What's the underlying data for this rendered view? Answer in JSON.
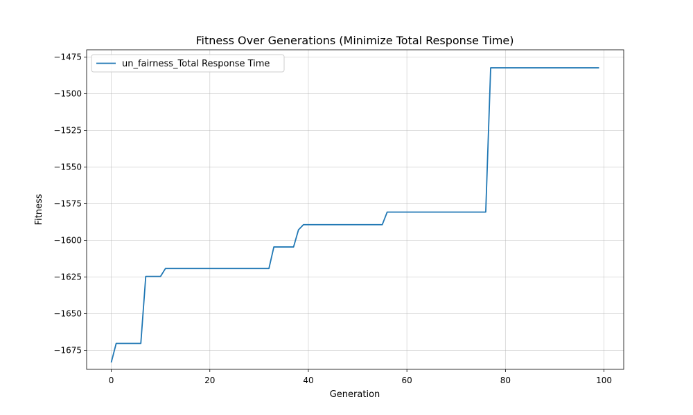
{
  "chart_data": {
    "type": "line",
    "title": "Fitness Over Generations (Minimize Total Response Time)",
    "xlabel": "Generation",
    "ylabel": "Fitness",
    "xlim": [
      -5,
      104
    ],
    "ylim": [
      -1688,
      -1470
    ],
    "xticks": [
      0,
      20,
      40,
      60,
      80,
      100
    ],
    "yticks": [
      -1675,
      -1650,
      -1625,
      -1600,
      -1575,
      -1550,
      -1525,
      -1500,
      -1475
    ],
    "xtick_labels": [
      "0",
      "20",
      "40",
      "60",
      "80",
      "100"
    ],
    "ytick_labels": [
      "−1675",
      "−1650",
      "−1625",
      "−1600",
      "−1575",
      "−1550",
      "−1525",
      "−1500",
      "−1475"
    ],
    "grid": true,
    "legend_position": "top-left",
    "series": [
      {
        "name": "un_fairness_Total Response Time",
        "color": "#1f77b4",
        "x": [
          0,
          1,
          2,
          3,
          4,
          5,
          6,
          7,
          8,
          9,
          10,
          11,
          12,
          13,
          14,
          15,
          16,
          17,
          18,
          19,
          20,
          21,
          22,
          23,
          24,
          25,
          26,
          27,
          28,
          29,
          30,
          31,
          32,
          33,
          34,
          35,
          36,
          37,
          38,
          39,
          40,
          41,
          42,
          43,
          44,
          45,
          46,
          47,
          48,
          49,
          50,
          51,
          52,
          53,
          54,
          55,
          56,
          57,
          58,
          59,
          60,
          61,
          62,
          63,
          64,
          65,
          66,
          67,
          68,
          69,
          70,
          71,
          72,
          73,
          74,
          75,
          76,
          77,
          78,
          79,
          80,
          81,
          82,
          83,
          84,
          85,
          86,
          87,
          88,
          89,
          90,
          91,
          92,
          93,
          94,
          95,
          96,
          97,
          98,
          99
        ],
        "y": [
          -1683.3,
          -1670.3,
          -1670.3,
          -1670.3,
          -1670.3,
          -1670.3,
          -1670.3,
          -1624.6,
          -1624.6,
          -1624.6,
          -1624.6,
          -1619.2,
          -1619.2,
          -1619.2,
          -1619.2,
          -1619.2,
          -1619.2,
          -1619.2,
          -1619.2,
          -1619.2,
          -1619.2,
          -1619.2,
          -1619.2,
          -1619.2,
          -1619.2,
          -1619.2,
          -1619.2,
          -1619.2,
          -1619.2,
          -1619.2,
          -1619.2,
          -1619.2,
          -1619.2,
          -1604.5,
          -1604.5,
          -1604.5,
          -1604.5,
          -1604.5,
          -1592.8,
          -1589.3,
          -1589.3,
          -1589.3,
          -1589.3,
          -1589.3,
          -1589.3,
          -1589.3,
          -1589.3,
          -1589.3,
          -1589.3,
          -1589.3,
          -1589.3,
          -1589.3,
          -1589.3,
          -1589.3,
          -1589.3,
          -1589.3,
          -1580.7,
          -1580.7,
          -1580.7,
          -1580.7,
          -1580.7,
          -1580.7,
          -1580.7,
          -1580.7,
          -1580.7,
          -1580.7,
          -1580.7,
          -1580.7,
          -1580.7,
          -1580.7,
          -1580.7,
          -1580.7,
          -1580.7,
          -1580.7,
          -1580.7,
          -1580.7,
          -1580.7,
          -1482.3,
          -1482.3,
          -1482.3,
          -1482.3,
          -1482.3,
          -1482.3,
          -1482.3,
          -1482.3,
          -1482.3,
          -1482.3,
          -1482.3,
          -1482.3,
          -1482.3,
          -1482.3,
          -1482.3,
          -1482.3,
          -1482.3,
          -1482.3,
          -1482.3,
          -1482.3,
          -1482.3,
          -1482.3,
          -1482.3
        ]
      }
    ]
  }
}
